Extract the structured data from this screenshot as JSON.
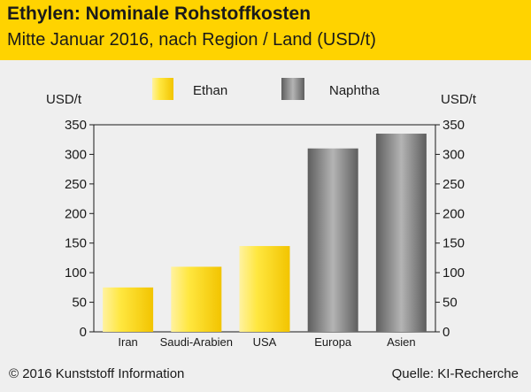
{
  "title": "Ethylen: Nominale Rohstoffkosten",
  "subtitle": "Mitte Januar 2016, nach Region / Land (USD/t)",
  "footer": {
    "copyright": "© 2016 Kunststoff Information",
    "source": "Quelle: KI-Recherche"
  },
  "colors": {
    "header": "#ffd300",
    "background": "#efefef",
    "ethan": "#ffe030",
    "naphtha": "#8c8c8c"
  },
  "chart_data": {
    "type": "bar",
    "title": "Ethylen: Nominale Rohstoffkosten",
    "subtitle": "Mitte Januar 2016, nach Region / Land (USD/t)",
    "ylabel_left": "USD/t",
    "ylabel_right": "USD/t",
    "ylim": [
      0,
      350
    ],
    "yticks": [
      0,
      50,
      100,
      150,
      200,
      250,
      300,
      350
    ],
    "grid": false,
    "legend_position": "top",
    "categories": [
      "Iran",
      "Saudi-Arabien",
      "USA",
      "Europa",
      "Asien"
    ],
    "series": [
      {
        "name": "Ethan",
        "color": "ethan",
        "values": [
          75,
          110,
          145,
          null,
          null
        ]
      },
      {
        "name": "Naphtha",
        "color": "naphtha",
        "values": [
          null,
          null,
          null,
          310,
          335
        ]
      }
    ]
  }
}
